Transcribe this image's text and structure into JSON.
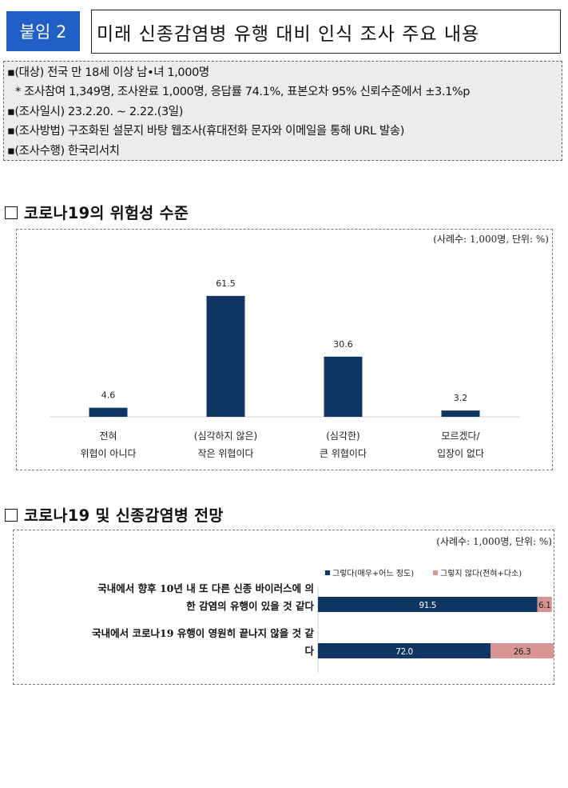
{
  "header": {
    "badge": "붙임 2",
    "title": "미래 신종감염병 유행 대비 인식 조사 주요 내용"
  },
  "survey_info": {
    "lines": [
      "▪(대상) 전국 만 18세 이상 남•녀 1,000명",
      "* 조사참여 1,349명, 조사완료 1,000명, 응답률 74.1%, 표본오차 95% 신뢰수준에서 ±3.1%p",
      "▪(조사일시) 23.2.20. ~ 2.22.(3일)",
      "▪(조사방법) 구조화된 설문지 바탕 웹조사(휴대전화 문자와 이메일을 통해 URL 발송)",
      "▪(조사수행) 한국리서치"
    ]
  },
  "section1": {
    "title": "코로나19의 위험성 수준",
    "unit_note": "(사례수: 1,000명, 단위: %)"
  },
  "section2": {
    "title": "코로나19 및 신종감염병 전망",
    "unit_note": "(사례수: 1,000명, 단위: %)"
  },
  "chart_data": [
    {
      "type": "bar",
      "categories": [
        [
          "전혀",
          "위협이 아니다"
        ],
        [
          "(심각하지 않은)",
          "작은 위협이다"
        ],
        [
          "(심각한)",
          "큰 위협이다"
        ],
        [
          "모르겠다/",
          "입장이 없다"
        ]
      ],
      "values": [
        4.6,
        61.5,
        30.6,
        3.2
      ],
      "value_labels": [
        "4.6",
        "61.5",
        "30.6",
        "3.2"
      ],
      "ylim": [
        0,
        70
      ],
      "color": "#0f3562",
      "grid": false
    },
    {
      "type": "bar",
      "orientation": "horizontal",
      "stacked": true,
      "categories": [
        [
          "국내에서 향후 10년 내 또 다른 신종 바이러스에 의",
          "한 감염의 유행이 있을 것 같다"
        ],
        [
          "국내에서 코로나19 유행이 영원히 끝나지 않을 것 같",
          "다"
        ]
      ],
      "series": [
        {
          "name": "그렇다(매우+어느 정도)",
          "values": [
            91.5,
            72.0
          ],
          "labels": [
            "91.5",
            "72.0"
          ],
          "color": "#0f3562"
        },
        {
          "name": "그렇지 않다(전혀+다소)",
          "values": [
            6.1,
            26.3
          ],
          "labels": [
            "6.1",
            "26.3"
          ],
          "color": "#d99595"
        }
      ],
      "xlim": [
        0,
        100
      ],
      "legend": "top"
    }
  ]
}
